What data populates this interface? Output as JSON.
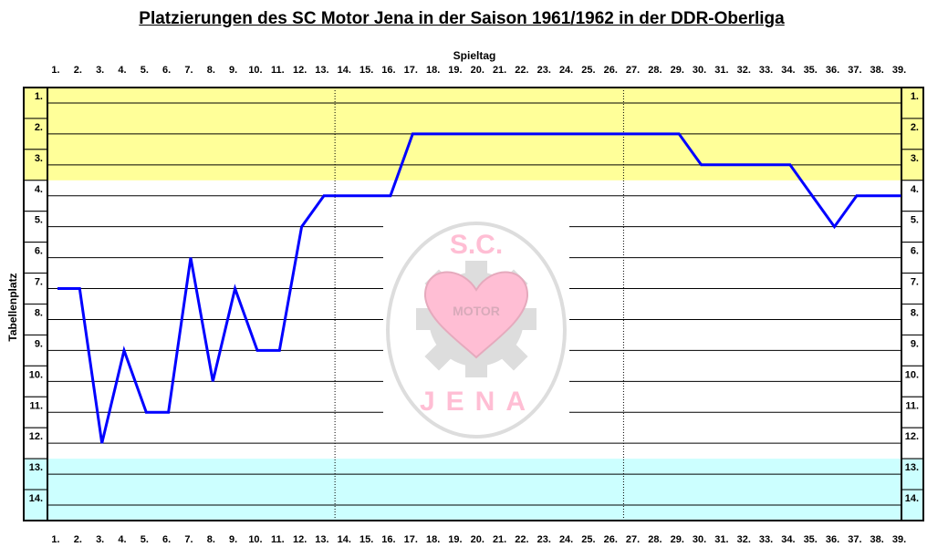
{
  "chart_data": {
    "type": "line",
    "title": "Platzierungen des SC Motor Jena in der Saison 1961/1962 in der DDR-Oberliga",
    "xlabel": "Spieltag",
    "ylabel": "Tabellenplatz",
    "x_ticks": [
      "1.",
      "2.",
      "3.",
      "4.",
      "5.",
      "6.",
      "7.",
      "8.",
      "9.",
      "10.",
      "11.",
      "12.",
      "13.",
      "14.",
      "15.",
      "16.",
      "17.",
      "18.",
      "19.",
      "20.",
      "21.",
      "22.",
      "23.",
      "24.",
      "25.",
      "26.",
      "27.",
      "28.",
      "29.",
      "30.",
      "31.",
      "32.",
      "33.",
      "34.",
      "35.",
      "36.",
      "37.",
      "38.",
      "39."
    ],
    "y_ticks": [
      "1.",
      "2.",
      "3.",
      "4.",
      "5.",
      "6.",
      "7.",
      "8.",
      "9.",
      "10.",
      "11.",
      "12.",
      "13.",
      "14."
    ],
    "ylim": [
      1,
      14
    ],
    "y_inverted": true,
    "x": [
      1,
      2,
      3,
      4,
      5,
      6,
      7,
      8,
      9,
      10,
      11,
      12,
      13,
      14,
      15,
      16,
      17,
      18,
      19,
      20,
      21,
      22,
      23,
      24,
      25,
      26,
      27,
      28,
      29,
      30,
      31,
      32,
      33,
      34,
      35,
      36,
      37,
      38,
      39
    ],
    "series": [
      {
        "values": [
          7,
          7,
          12,
          9,
          11,
          11,
          6,
          10,
          7,
          9,
          9,
          5,
          4,
          4,
          4,
          4,
          2,
          2,
          2,
          2,
          2,
          2,
          2,
          2,
          2,
          2,
          2,
          2,
          2,
          3,
          3,
          3,
          3,
          3,
          4,
          5,
          4,
          4,
          4
        ]
      }
    ],
    "zones": [
      {
        "from": 1,
        "to": 3,
        "color": "#ffff99"
      },
      {
        "from": 13,
        "to": 14,
        "color": "#ccffff"
      }
    ],
    "divider_after_matchdays": [
      13,
      26
    ],
    "line_color": "#0000ff",
    "grid": true,
    "logo": {
      "text_top": "S.C.",
      "text_band": "MOTOR",
      "text_bottom": "JENA"
    }
  }
}
